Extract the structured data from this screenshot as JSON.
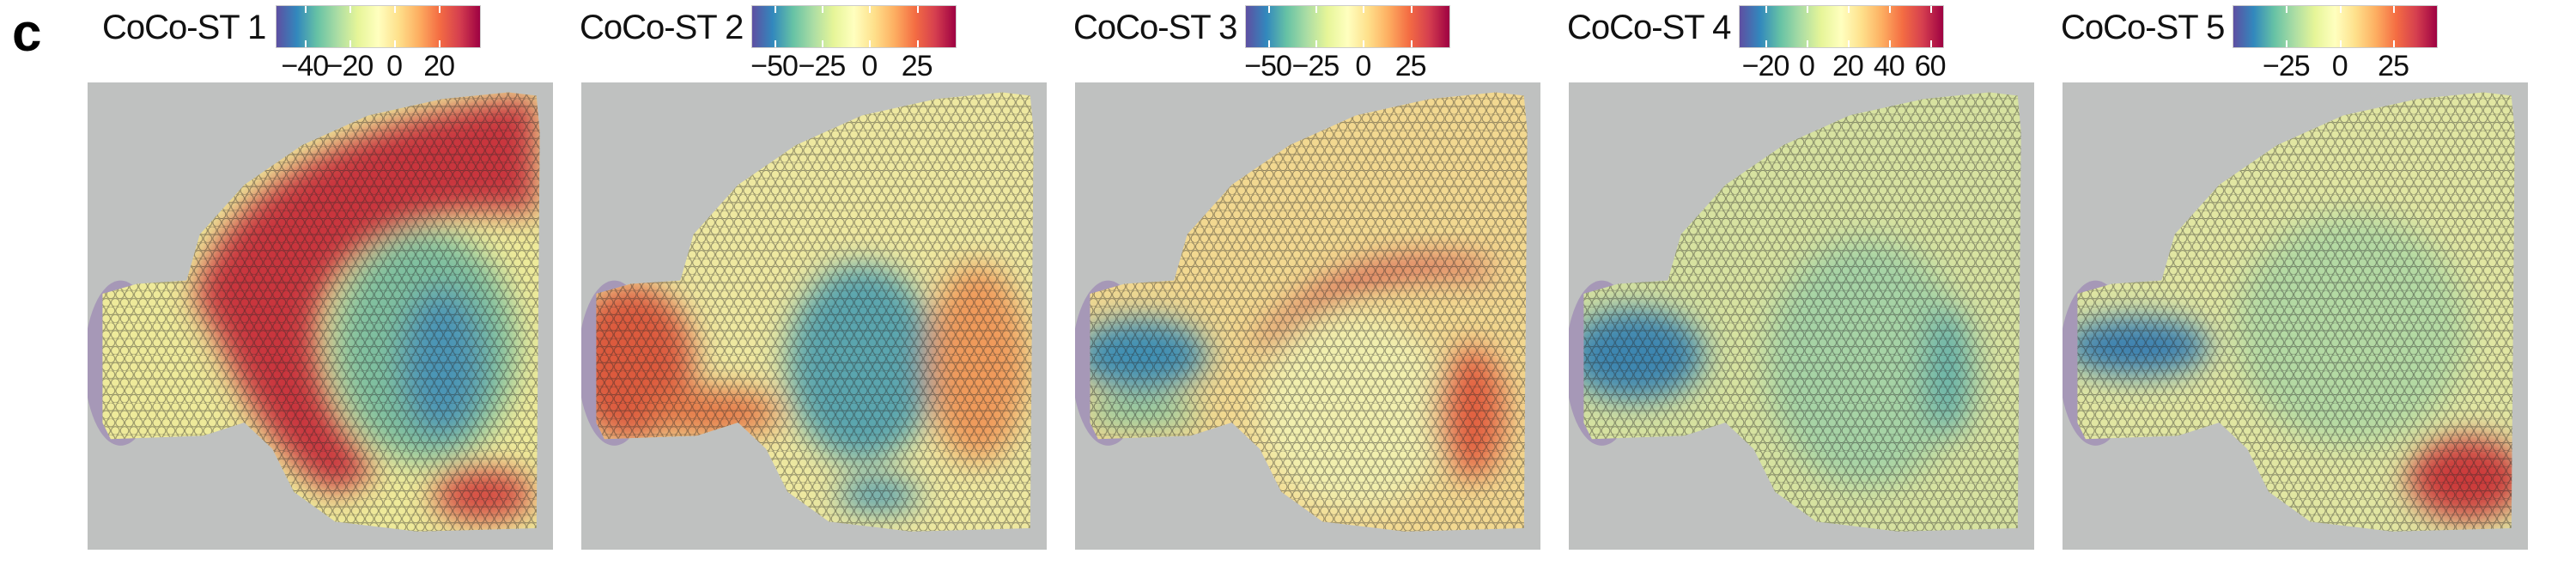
{
  "figure_label": "c",
  "chart_data": {
    "type": "heatmap",
    "colormap": "Spectral (reversed): blue low, red high",
    "colormap_stops": [
      "#5e4fa2",
      "#3288bd",
      "#66c2a5",
      "#abdda4",
      "#e6f598",
      "#ffffbf",
      "#fee08b",
      "#fdae61",
      "#f46d43",
      "#d53e4f",
      "#9e0142"
    ],
    "panels": [
      {
        "title": "CoCo-ST 1",
        "ticks": [
          -40,
          -20,
          0,
          20
        ],
        "tick_labels": [
          "−40",
          "−20",
          "0",
          "20"
        ],
        "range": [
          -53,
          38
        ],
        "pattern": "high in cortex band and lower-right region; low in central striatum/thalamus"
      },
      {
        "title": "CoCo-ST 2",
        "ticks": [
          -50,
          -25,
          0,
          25
        ],
        "tick_labels": [
          "−50",
          "−25",
          "0",
          "25"
        ],
        "range": [
          -62,
          45
        ],
        "pattern": "high in olfactory bulb and right regions; low in central striatum"
      },
      {
        "title": "CoCo-ST 3",
        "ticks": [
          -50,
          -25,
          0,
          25
        ],
        "tick_labels": [
          "−50",
          "−25",
          "0",
          "25"
        ],
        "range": [
          -62,
          45
        ],
        "pattern": "low in olfactory bulb; high along boundary lines and right region"
      },
      {
        "title": "CoCo-ST 4",
        "ticks": [
          -20,
          0,
          20,
          40,
          60
        ],
        "tick_labels": [
          "−20",
          "0",
          "20",
          "40",
          "60"
        ],
        "range": [
          -33,
          66
        ],
        "pattern": "low in olfactory bulb; mostly near zero elsewhere"
      },
      {
        "title": "CoCo-ST 5",
        "ticks": [
          -25,
          0,
          25
        ],
        "tick_labels": [
          "−25",
          "0",
          "25"
        ],
        "range": [
          -50,
          45
        ],
        "pattern": "low in olfactory bulb band; high in lower-right region"
      }
    ]
  }
}
